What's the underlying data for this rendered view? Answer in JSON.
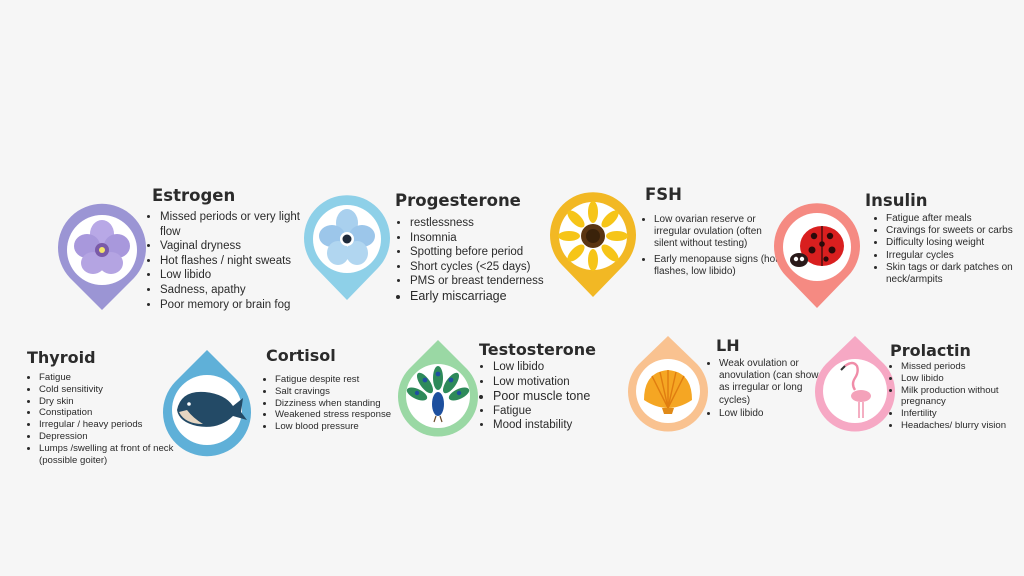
{
  "colors": {
    "estrogen": "#9b95d4",
    "progesterone": "#8ed0e8",
    "fsh": "#f2b824",
    "insulin": "#f58a82",
    "thyroid": "#ffffff",
    "cortisol": "#5fb0d8",
    "testosterone": "#9ad8a4",
    "lh": "#f9c290",
    "prolactin": "#f6a8c4"
  },
  "hormones": {
    "estrogen": {
      "title": "Estrogen",
      "icon": "purple-flower-icon",
      "symptoms": [
        "Missed periods or very light flow",
        "Vaginal dryness",
        "Hot flashes / night sweats",
        "Low libido",
        "Sadness, apathy",
        "Poor memory or brain fog"
      ]
    },
    "progesterone": {
      "title": "Progesterone",
      "icon": "blue-flower-icon",
      "symptoms": [
        "restlessness",
        "Insomnia",
        "Spotting before period",
        "Short cycles (<25 days)",
        "PMS or breast tenderness",
        "Early miscarriage"
      ]
    },
    "fsh": {
      "title": "FSH",
      "icon": "sunflower-icon",
      "symptoms": [
        "Low ovarian reserve or irregular ovulation (often silent without testing)",
        "Early menopause signs (hot flashes, low libido)"
      ]
    },
    "insulin": {
      "title": "Insulin",
      "icon": "ladybug-icon",
      "symptoms": [
        "Fatigue after meals",
        "Cravings for sweets or carbs",
        "Difficulty losing weight",
        "Irregular cycles",
        "Skin tags or dark patches on neck/armpits"
      ]
    },
    "thyroid": {
      "title": "Thyroid",
      "symptoms": [
        "Fatigue",
        "Cold sensitivity",
        "Dry skin",
        "Constipation",
        "Irregular / heavy periods",
        "Depression",
        "Lumps /swelling at front of neck (possible goiter)"
      ]
    },
    "cortisol": {
      "title": "Cortisol",
      "icon": "whale-icon",
      "symptoms": [
        "Fatigue despite rest",
        "Salt cravings",
        "Dizziness when standing",
        "Weakened stress response",
        "Low blood pressure"
      ]
    },
    "testosterone": {
      "title": "Testosterone",
      "icon": "peacock-icon",
      "symptoms": [
        "Low libido",
        "Low motivation",
        "Poor muscle tone",
        "Fatigue",
        "Mood instability"
      ]
    },
    "lh": {
      "title": "LH",
      "icon": "seashell-icon",
      "symptoms": [
        "Weak ovulation or anovulation (can show as irregular or long cycles)",
        "Low libido"
      ]
    },
    "prolactin": {
      "title": "Prolactin",
      "icon": "flamingo-icon",
      "symptoms": [
        "Missed periods",
        "Low libido",
        "Milk production without pregnancy",
        "Infertility",
        "Headaches/ blurry vision"
      ]
    }
  }
}
